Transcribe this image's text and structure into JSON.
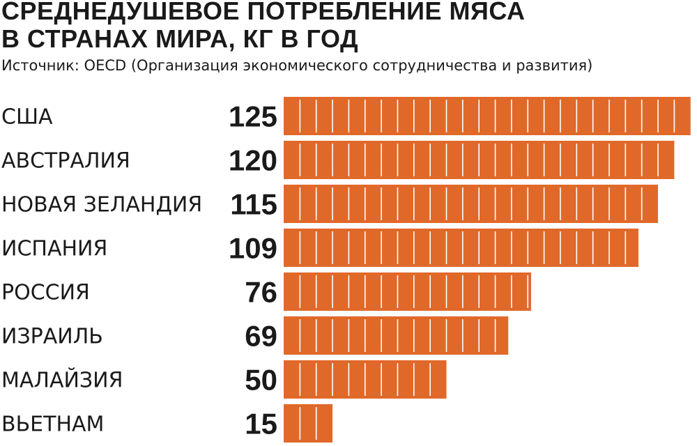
{
  "chart_data": {
    "type": "bar",
    "orientation": "horizontal",
    "title": "СРЕДНЕДУШЕВОЕ ПОТРЕБЛЕНИЕ МЯСА В СТРАНАХ МИРА, КГ В ГОД",
    "title_lines": [
      "СРЕДНЕДУШЕВОЕ ПОТРЕБЛЕНИЕ МЯСА",
      "В СТРАНАХ МИРА, КГ В ГОД"
    ],
    "subtitle": "Источник: OECD (Организация экономического сотрудничества и развития)",
    "categories": [
      "США",
      "АВСТРАЛИЯ",
      "НОВАЯ ЗЕЛАНДИЯ",
      "ИСПАНИЯ",
      "РОССИЯ",
      "ИЗРАИЛЬ",
      "МАЛАЙЗИЯ",
      "ВЬЕТНАМ"
    ],
    "values": [
      125,
      120,
      115,
      109,
      76,
      69,
      50,
      15
    ],
    "value_labels": [
      "125",
      "120",
      "115",
      "109",
      "76",
      "69",
      "50",
      "15"
    ],
    "segment_unit": 5,
    "bar_color": "#E0692A",
    "segment_line_color": "#ffffff",
    "grid": false,
    "legend": "none"
  }
}
